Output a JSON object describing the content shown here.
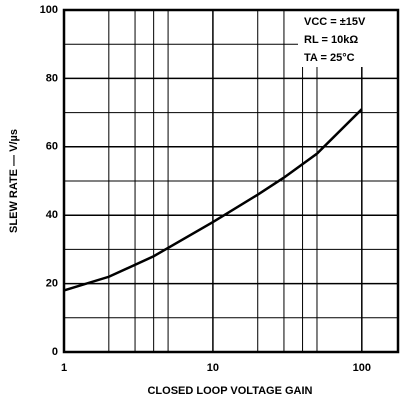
{
  "chart_data": {
    "type": "line",
    "xlabel": "CLOSED LOOP VOLTAGE GAIN",
    "ylabel": "SLEW RATE — V/µs",
    "annotations": [
      "VCC = ±15V",
      "RL = 10kΩ",
      "TA = 25°C"
    ],
    "x": [
      1,
      2,
      4,
      10,
      20,
      30,
      50,
      100
    ],
    "series": [
      {
        "name": "Slew rate",
        "color": "#000000",
        "values": [
          18,
          22,
          28,
          38,
          46,
          51,
          58,
          71
        ]
      }
    ],
    "xscale": "log",
    "xlim": [
      1,
      175
    ],
    "xticks": [
      1,
      10,
      100
    ],
    "x_minor_ticks": [
      2,
      3,
      4,
      5,
      20,
      30,
      40,
      50
    ],
    "ylim": [
      0,
      100
    ],
    "yticks": [
      0,
      20,
      40,
      60,
      80,
      100
    ],
    "y_minor_ticks": [
      10,
      30,
      50,
      70,
      90
    ],
    "grid": true
  }
}
